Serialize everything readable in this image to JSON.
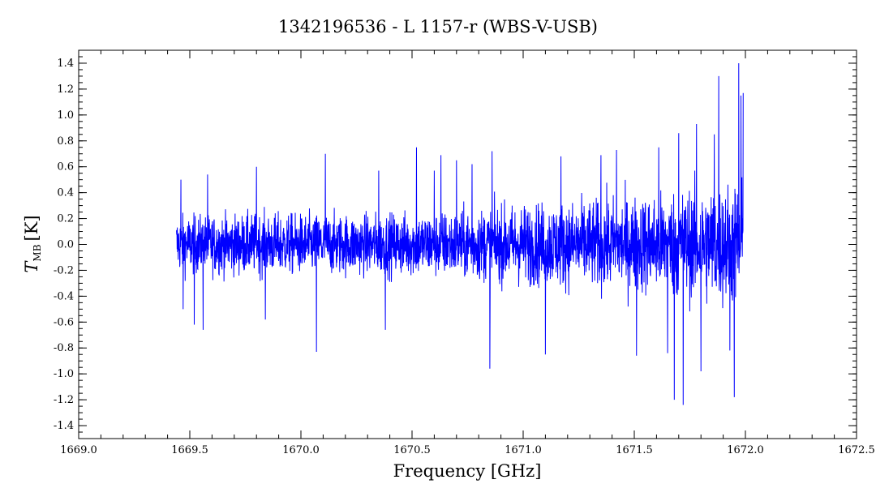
{
  "chart_data": {
    "type": "line",
    "title": "1342196536 - L 1157-r (WBS-V-USB)",
    "xlabel": "Frequency [GHz]",
    "ylabel_main": "T",
    "ylabel_sub": "MB",
    "ylabel_unit": "[K]",
    "xlim": [
      1669.0,
      1672.5
    ],
    "ylim": [
      -1.5,
      1.5
    ],
    "x_ticks": [
      1669.0,
      1669.5,
      1670.0,
      1670.5,
      1671.0,
      1671.5,
      1672.0,
      1672.5
    ],
    "x_tick_labels": [
      "1669.0",
      "1669.5",
      "1670.0",
      "1670.5",
      "1671.0",
      "1671.5",
      "1672.0",
      "1672.5"
    ],
    "y_ticks": [
      -1.4,
      -1.2,
      -1.0,
      -0.8,
      -0.6,
      -0.4,
      -0.2,
      0.0,
      0.2,
      0.4,
      0.6,
      0.8,
      1.0,
      1.2,
      1.4
    ],
    "y_tick_labels": [
      "-1.4",
      "-1.2",
      "-1.0",
      "-0.8",
      "-0.6",
      "-0.4",
      "-0.2",
      "0.0",
      "0.2",
      "0.4",
      "0.6",
      "0.8",
      "1.0",
      "1.2",
      "1.4"
    ],
    "grid": false,
    "series": [
      {
        "color": "#0000ff",
        "x_start": 1669.44,
        "x_end": 1671.99,
        "noise_envelope": [
          [
            1669.44,
            0.17
          ],
          [
            1669.8,
            0.18
          ],
          [
            1670.3,
            0.18
          ],
          [
            1670.7,
            0.2
          ],
          [
            1671.0,
            0.24
          ],
          [
            1671.3,
            0.26
          ],
          [
            1671.6,
            0.3
          ],
          [
            1671.8,
            0.34
          ],
          [
            1671.99,
            0.38
          ]
        ],
        "peaks": [
          [
            1669.46,
            0.5
          ],
          [
            1669.47,
            -0.5
          ],
          [
            1669.52,
            -0.62
          ],
          [
            1669.56,
            -0.66
          ],
          [
            1669.58,
            0.54
          ],
          [
            1669.8,
            0.6
          ],
          [
            1669.84,
            -0.58
          ],
          [
            1670.07,
            -0.83
          ],
          [
            1670.11,
            0.7
          ],
          [
            1670.35,
            0.57
          ],
          [
            1670.38,
            -0.66
          ],
          [
            1670.52,
            0.75
          ],
          [
            1670.6,
            0.57
          ],
          [
            1670.63,
            0.69
          ],
          [
            1670.7,
            0.65
          ],
          [
            1670.77,
            0.62
          ],
          [
            1670.85,
            -0.96
          ],
          [
            1670.86,
            0.72
          ],
          [
            1671.1,
            -0.85
          ],
          [
            1671.17,
            0.68
          ],
          [
            1671.35,
            0.69
          ],
          [
            1671.42,
            0.73
          ],
          [
            1671.51,
            -0.86
          ],
          [
            1671.61,
            0.75
          ],
          [
            1671.65,
            -0.84
          ],
          [
            1671.68,
            -1.2
          ],
          [
            1671.7,
            0.86
          ],
          [
            1671.72,
            -1.24
          ],
          [
            1671.78,
            0.93
          ],
          [
            1671.8,
            -0.98
          ],
          [
            1671.86,
            0.85
          ],
          [
            1671.88,
            1.3
          ],
          [
            1671.93,
            -0.82
          ],
          [
            1671.95,
            -1.18
          ],
          [
            1671.97,
            1.4
          ],
          [
            1671.98,
            1.15
          ],
          [
            1671.99,
            1.17
          ]
        ]
      }
    ]
  }
}
